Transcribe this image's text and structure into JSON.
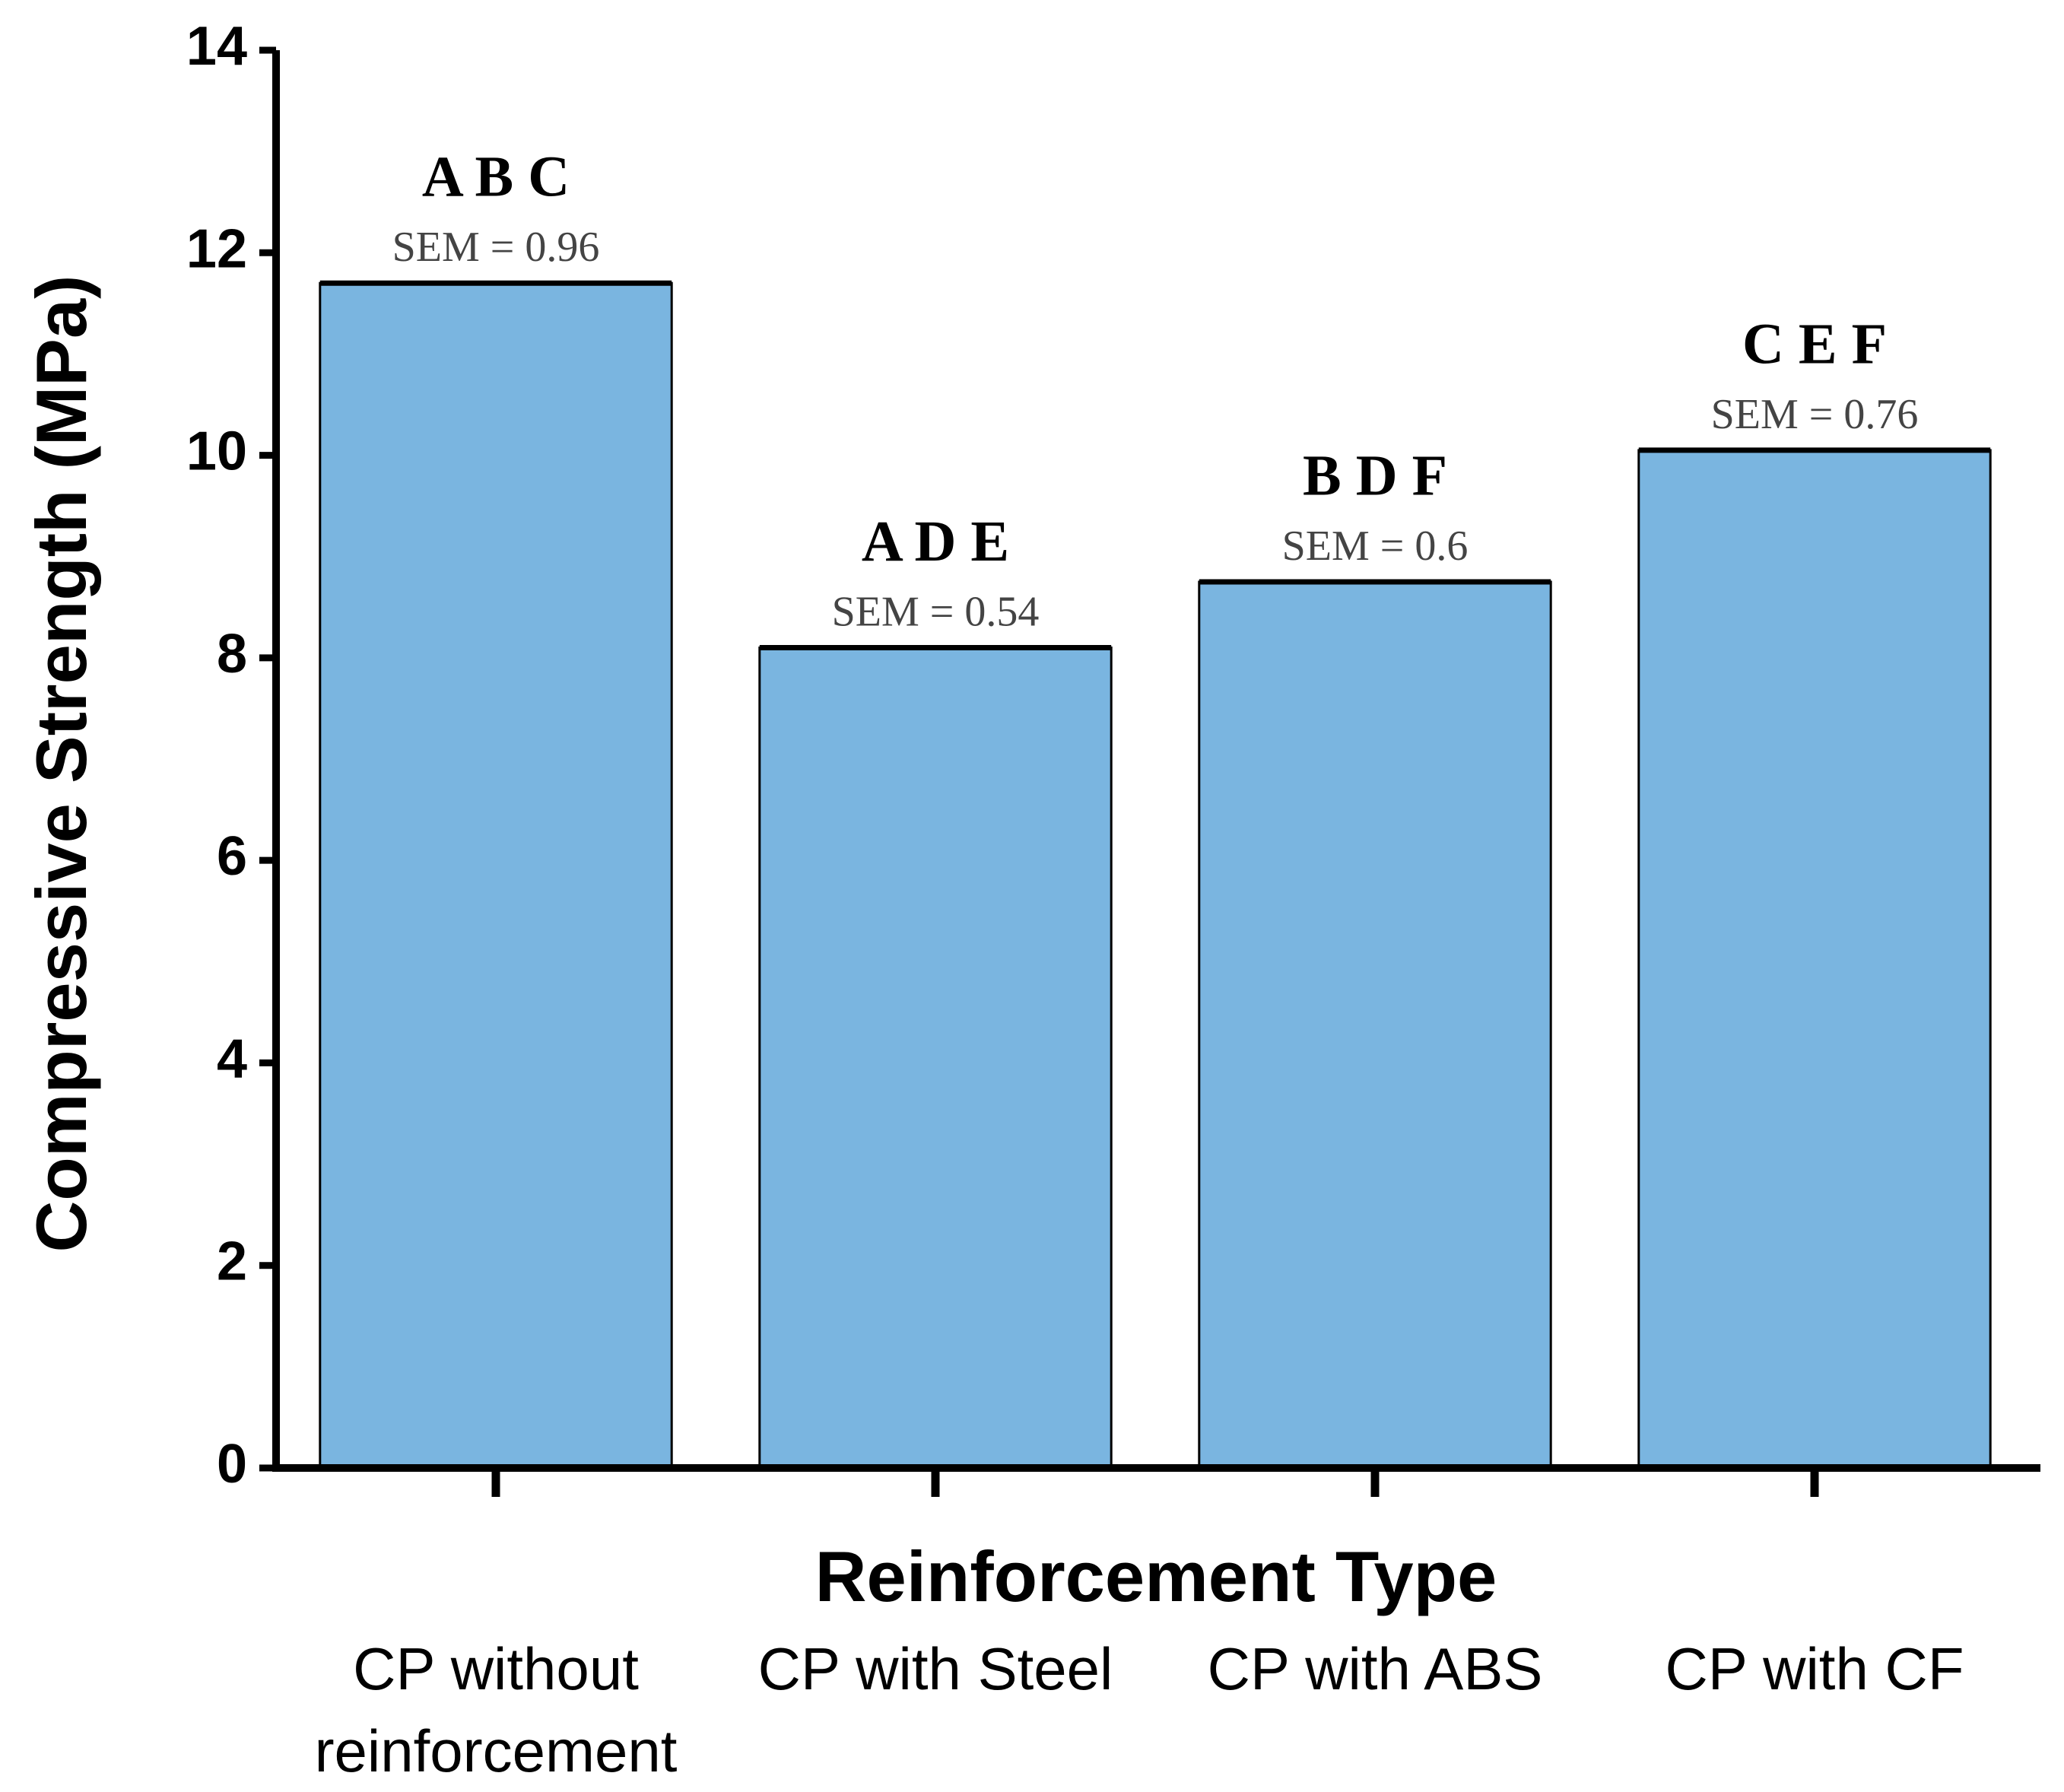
{
  "chart_data": {
    "type": "bar",
    "x_label": "Reinforcement Type",
    "y_label": "Compressive Strength (MPa)",
    "categories": [
      "CP without reinforcement",
      "CP with Steel",
      "CP with ABS",
      "CP with CF"
    ],
    "values": [
      11.7,
      8.1,
      8.75,
      10.05
    ],
    "group_labels": [
      "A B C",
      "A D E",
      "B D F",
      "C E F"
    ],
    "sem_labels": [
      "SEM = 0.96",
      "SEM = 0.54",
      "SEM = 0.6",
      "SEM = 0.76"
    ],
    "color": "#7ab5e0",
    "ylim": [
      0,
      14
    ],
    "yticks": [
      0,
      2,
      4,
      6,
      8,
      10,
      12,
      14
    ],
    "grid": false
  }
}
